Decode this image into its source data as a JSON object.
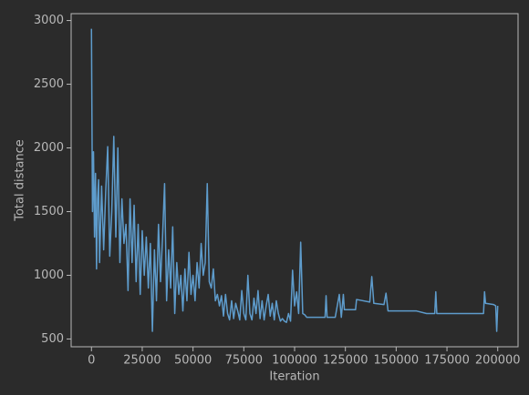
{
  "chart_data": {
    "type": "line",
    "xlabel": "Iteration",
    "ylabel": "Total distance",
    "xlim": [
      -10000,
      210000
    ],
    "ylim": [
      439,
      3054
    ],
    "xticks": [
      0,
      25000,
      50000,
      75000,
      100000,
      125000,
      150000,
      175000,
      200000
    ],
    "yticks": [
      500,
      1000,
      1500,
      2000,
      2500,
      3000
    ],
    "grid": false,
    "series": [
      {
        "color": "#5e9ccc",
        "x": [
          0,
          500,
          1000,
          1500,
          2000,
          2500,
          3000,
          3500,
          4000,
          5000,
          6000,
          7000,
          8000,
          9000,
          10000,
          11000,
          12000,
          13000,
          14000,
          15000,
          16000,
          17000,
          18000,
          19000,
          20000,
          21000,
          22000,
          23000,
          24000,
          25000,
          26000,
          27000,
          28000,
          29000,
          30000,
          31000,
          32000,
          33000,
          34000,
          35000,
          36000,
          37000,
          38000,
          39000,
          40000,
          41000,
          42000,
          43000,
          44000,
          45000,
          46000,
          47000,
          48000,
          49000,
          50000,
          51000,
          52000,
          53000,
          54000,
          55000,
          56000,
          57000,
          58000,
          59000,
          60000,
          61000,
          62000,
          63000,
          64000,
          65000,
          66000,
          67000,
          68000,
          69000,
          70000,
          71000,
          72000,
          73000,
          74000,
          75000,
          76000,
          77000,
          78000,
          79000,
          80000,
          81000,
          82000,
          83000,
          84000,
          85000,
          86000,
          87000,
          88000,
          89000,
          90000,
          91000,
          92000,
          93000,
          94000,
          95000,
          96000,
          97000,
          98000,
          99000,
          100000,
          101000,
          102000,
          103000,
          104000,
          105000,
          106000,
          110000,
          115000,
          115500,
          116000,
          120000,
          122000,
          123000,
          124000,
          124500,
          130000,
          130500,
          137000,
          138000,
          139000,
          144000,
          145000,
          146000,
          150000,
          160000,
          165000,
          169000,
          169500,
          170000,
          180000,
          190000,
          193000,
          193500,
          194000,
          198000,
          199000,
          199500,
          200000
        ],
        "values": [
          2935,
          1500,
          1970,
          1300,
          1800,
          1050,
          1600,
          1750,
          1100,
          1700,
          1200,
          1650,
          2010,
          1150,
          1500,
          2090,
          1300,
          2000,
          1100,
          1600,
          1250,
          1400,
          880,
          1600,
          1100,
          1550,
          950,
          1400,
          850,
          1350,
          1000,
          1300,
          900,
          1250,
          560,
          1200,
          800,
          1400,
          950,
          1300,
          1720,
          800,
          1200,
          900,
          1380,
          700,
          1100,
          850,
          1000,
          720,
          1050,
          800,
          1180,
          850,
          1000,
          800,
          1100,
          900,
          1250,
          1000,
          1100,
          1720,
          950,
          900,
          1050,
          800,
          850,
          760,
          840,
          680,
          850,
          700,
          650,
          800,
          660,
          780,
          720,
          650,
          880,
          700,
          650,
          1000,
          700,
          650,
          820,
          700,
          880,
          660,
          800,
          650,
          760,
          850,
          680,
          780,
          650,
          800,
          700,
          640,
          660,
          640,
          630,
          700,
          640,
          1040,
          760,
          870,
          700,
          1260,
          700,
          690,
          670,
          670,
          670,
          840,
          670,
          670,
          850,
          670,
          850,
          730,
          730,
          810,
          790,
          990,
          780,
          770,
          860,
          720,
          720,
          720,
          700,
          700,
          870,
          700,
          700,
          700,
          700,
          870,
          780,
          770,
          760,
          560,
          760
        ]
      }
    ]
  }
}
